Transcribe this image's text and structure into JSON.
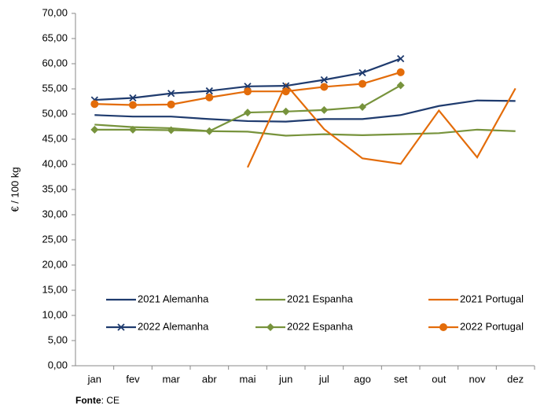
{
  "chart_data": {
    "type": "line",
    "y_label": "€ / 100 kg",
    "categories": [
      "jan",
      "fev",
      "mar",
      "abr",
      "mai",
      "jun",
      "jul",
      "ago",
      "set",
      "out",
      "nov",
      "dez"
    ],
    "ylim": [
      0,
      70
    ],
    "yticks": [
      {
        "value": 0,
        "label": "0,00"
      },
      {
        "value": 5,
        "label": "5,00"
      },
      {
        "value": 10,
        "label": "10,00"
      },
      {
        "value": 15,
        "label": "15,00"
      },
      {
        "value": 20,
        "label": "20,00"
      },
      {
        "value": 25,
        "label": "25,00"
      },
      {
        "value": 30,
        "label": "30,00"
      },
      {
        "value": 35,
        "label": "35,00"
      },
      {
        "value": 40,
        "label": "40,00"
      },
      {
        "value": 45,
        "label": "45,00"
      },
      {
        "value": 50,
        "label": "50,00"
      },
      {
        "value": 55,
        "label": "55,00"
      },
      {
        "value": 60,
        "label": "60,00"
      },
      {
        "value": 65,
        "label": "65,00"
      },
      {
        "value": 70,
        "label": "70,00"
      }
    ],
    "series": [
      {
        "name": "2021 Alemanha",
        "color": "#1f3b6e",
        "marker": "none",
        "values": [
          49.8,
          49.5,
          49.5,
          49.0,
          48.6,
          48.5,
          49.0,
          49.0,
          49.8,
          51.6,
          52.7,
          52.6
        ]
      },
      {
        "name": "2021 Espanha",
        "color": "#77933c",
        "marker": "none",
        "values": [
          47.9,
          47.4,
          47.2,
          46.6,
          46.5,
          45.7,
          46.0,
          45.8,
          46.0,
          46.2,
          46.9,
          46.6
        ]
      },
      {
        "name": "2021 Portugal",
        "color": "#e36c0a",
        "marker": "none",
        "values": [
          null,
          null,
          null,
          null,
          39.4,
          55.9,
          47.0,
          41.2,
          40.1,
          50.7,
          41.4,
          55.1
        ]
      },
      {
        "name": "2022 Alemanha",
        "color": "#1f3b6e",
        "marker": "x",
        "values": [
          52.8,
          53.2,
          54.1,
          54.6,
          55.5,
          55.6,
          56.8,
          58.2,
          61.0,
          null,
          null,
          null
        ]
      },
      {
        "name": "2022 Espanha",
        "color": "#77933c",
        "marker": "diamond",
        "values": [
          46.9,
          46.9,
          46.8,
          46.6,
          50.3,
          50.5,
          50.8,
          51.4,
          55.7,
          null,
          null,
          null
        ]
      },
      {
        "name": "2022 Portugal",
        "color": "#e36c0a",
        "marker": "circle",
        "values": [
          52.0,
          51.8,
          51.9,
          53.3,
          54.5,
          54.5,
          55.4,
          56.0,
          58.3,
          null,
          null,
          null
        ]
      }
    ],
    "source_label": "Fonte",
    "source": ": CE"
  }
}
